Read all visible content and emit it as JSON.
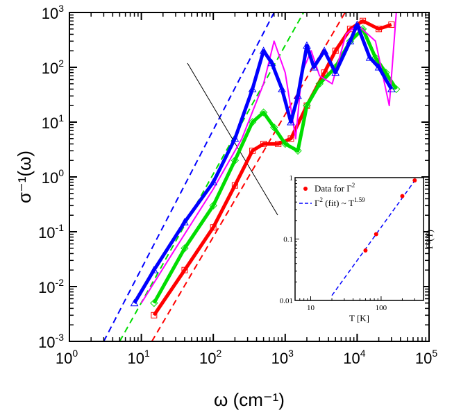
{
  "chart_data": {
    "type": "scatter",
    "main": {
      "xscale": "log",
      "yscale": "log",
      "xlim": [
        1,
        100000
      ],
      "ylim": [
        0.001,
        1000
      ],
      "xlabel": "ω (cm⁻¹)",
      "ylabel": "σ⁻¹(ω)",
      "xticks": [
        {
          "base": "10",
          "exp": "0"
        },
        {
          "base": "10",
          "exp": "1"
        },
        {
          "base": "10",
          "exp": "2"
        },
        {
          "base": "10",
          "exp": "3"
        },
        {
          "base": "10",
          "exp": "4"
        },
        {
          "base": "10",
          "exp": "5"
        }
      ],
      "yticks": [
        {
          "base": "10",
          "exp": "-3"
        },
        {
          "base": "10",
          "exp": "-2"
        },
        {
          "base": "10",
          "exp": "-1"
        },
        {
          "base": "10",
          "exp": "0"
        },
        {
          "base": "10",
          "exp": "1"
        },
        {
          "base": "10",
          "exp": "2"
        },
        {
          "base": "10",
          "exp": "3"
        }
      ],
      "series": [
        {
          "name": "blue",
          "color": "#0000ff",
          "marker": "triangle",
          "points": [
            [
              8,
              0.005
            ],
            [
              15,
              0.02
            ],
            [
              40,
              0.15
            ],
            [
              100,
              0.8
            ],
            [
              200,
              5
            ],
            [
              350,
              40
            ],
            [
              500,
              200
            ],
            [
              650,
              120
            ],
            [
              900,
              40
            ],
            [
              1200,
              10
            ],
            [
              1500,
              30
            ],
            [
              2000,
              250
            ],
            [
              2500,
              100
            ],
            [
              3500,
              200
            ],
            [
              5000,
              80
            ],
            [
              8000,
              300
            ],
            [
              10000,
              600
            ],
            [
              15000,
              150
            ],
            [
              20000,
              100
            ],
            [
              30000,
              40
            ]
          ]
        },
        {
          "name": "magenta",
          "color": "#ff00ff",
          "marker": "line",
          "points": [
            [
              10,
              0.005
            ],
            [
              30,
              0.05
            ],
            [
              100,
              0.6
            ],
            [
              250,
              5
            ],
            [
              500,
              50
            ],
            [
              700,
              300
            ],
            [
              1000,
              80
            ],
            [
              1400,
              5
            ],
            [
              1700,
              80
            ],
            [
              2300,
              200
            ],
            [
              3000,
              70
            ],
            [
              4500,
              50
            ],
            [
              7000,
              400
            ],
            [
              10000,
              600
            ],
            [
              18000,
              300
            ],
            [
              28000,
              20
            ],
            [
              35000,
              1000
            ]
          ]
        },
        {
          "name": "green",
          "color": "#00dd00",
          "marker": "diamond",
          "points": [
            [
              15,
              0.005
            ],
            [
              40,
              0.05
            ],
            [
              100,
              0.3
            ],
            [
              200,
              2
            ],
            [
              350,
              10
            ],
            [
              500,
              15
            ],
            [
              700,
              8
            ],
            [
              1000,
              4
            ],
            [
              1500,
              3
            ],
            [
              2000,
              20
            ],
            [
              3000,
              50
            ],
            [
              5000,
              100
            ],
            [
              8000,
              300
            ],
            [
              12000,
              500
            ],
            [
              18000,
              150
            ],
            [
              25000,
              80
            ],
            [
              35000,
              40
            ]
          ]
        },
        {
          "name": "red",
          "color": "#ff0000",
          "marker": "square",
          "points": [
            [
              15,
              0.003
            ],
            [
              40,
              0.02
            ],
            [
              100,
              0.12
            ],
            [
              200,
              0.7
            ],
            [
              350,
              3
            ],
            [
              500,
              4
            ],
            [
              800,
              4
            ],
            [
              1200,
              5
            ],
            [
              2000,
              20
            ],
            [
              3500,
              80
            ],
            [
              5000,
              200
            ],
            [
              8000,
              500
            ],
            [
              12000,
              700
            ],
            [
              20000,
              500
            ],
            [
              30000,
              600
            ]
          ]
        }
      ],
      "fit_lines": [
        {
          "name": "blue-fit",
          "color": "#0000ff",
          "from": [
            3,
            0.001
          ],
          "to": [
            700,
            1000
          ]
        },
        {
          "name": "green-fit",
          "color": "#00dd00",
          "from": [
            5,
            0.001
          ],
          "to": [
            1800,
            1000
          ]
        },
        {
          "name": "red-fit",
          "color": "#ff0000",
          "from": [
            14,
            0.001
          ],
          "to": [
            6800,
            1000
          ]
        }
      ]
    },
    "inset": {
      "xscale": "log",
      "yscale": "log",
      "xlim": [
        6,
        400
      ],
      "ylim": [
        0.01,
        1
      ],
      "xlabel": "T [K]",
      "ylabel": "Γ²(T)",
      "xticks": [
        "10",
        "100"
      ],
      "yticks": [
        "0.01",
        "0.1",
        "1"
      ],
      "legend": [
        {
          "label": "Data for Γ",
          "sup": "2",
          "marker": "dot",
          "color": "#ff0000"
        },
        {
          "label": "Γ",
          "sup": "2",
          "label_tail": " (fit) ~ T",
          "sup2": "1.59",
          "marker": "dash",
          "color": "#0000ff"
        }
      ],
      "data_points": [
        [
          60,
          0.065
        ],
        [
          85,
          0.12
        ],
        [
          200,
          0.5
        ],
        [
          300,
          0.9
        ]
      ],
      "fit": {
        "exponent": 1.59,
        "from_T": 20,
        "to_T": 350
      }
    }
  }
}
